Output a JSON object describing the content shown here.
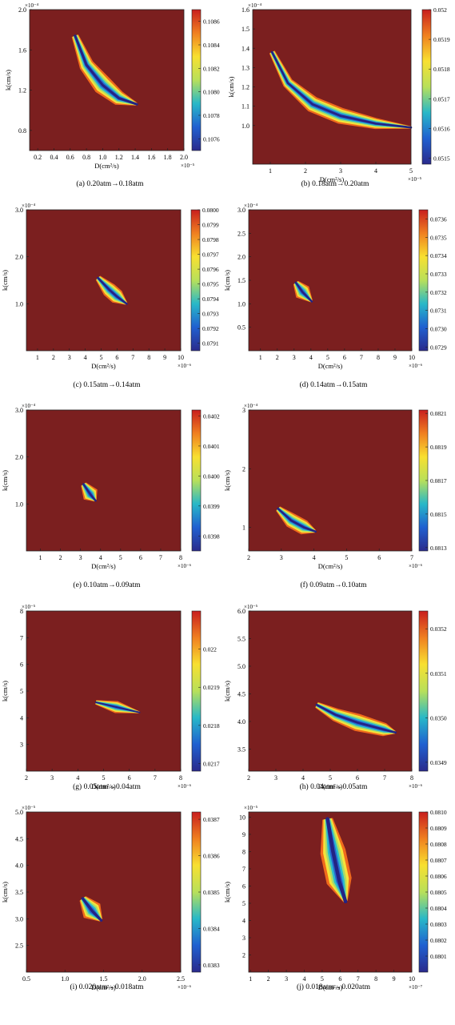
{
  "background": "#7b1f1f",
  "colormap": [
    "#2a2a8c",
    "#2060d0",
    "#28b8c8",
    "#b8e05a",
    "#f8e030",
    "#f08020",
    "#c81e1e"
  ],
  "chart_data": [
    {
      "id": "a",
      "type": "heatmap",
      "caption": "(a)  0.20atm→0.18atm",
      "xlabel": "D(cm²/s)",
      "ylabel": "k(cm/s)",
      "x_multiplier": "×10⁻⁵",
      "y_multiplier": "×10⁻⁴",
      "xlim": [
        0.1,
        2.0
      ],
      "ylim": [
        0.6,
        2.0
      ],
      "xticks": [
        0.2,
        0.4,
        0.6,
        0.8,
        1.0,
        1.2,
        1.4,
        1.6,
        1.8,
        2.0
      ],
      "xtick_labels": [
        "0.2",
        "0.4",
        "0.6",
        "0.8",
        "1.0",
        "1.2",
        "1.4",
        "1.6",
        "1.8",
        "2.0"
      ],
      "yticks": [
        0.8,
        1.2,
        1.6,
        2.0
      ],
      "ytick_labels": [
        "0.8",
        "1.2",
        "1.6",
        "2.0"
      ],
      "colorbar": {
        "lim": [
          0.1075,
          0.1087
        ],
        "ticks": [
          0.1076,
          0.1078,
          0.108,
          0.1082,
          0.1084,
          0.1086
        ],
        "labels": [
          "0.1076",
          "0.1078",
          "0.1080",
          "0.1082",
          "0.1084",
          "0.1086"
        ]
      },
      "valley": {
        "x": [
          0.66,
          0.8,
          1.0,
          1.2,
          1.42
        ],
        "y": [
          1.74,
          1.45,
          1.25,
          1.12,
          1.06
        ],
        "width": 0.14
      }
    },
    {
      "id": "b",
      "type": "heatmap",
      "caption": "(b) 0.18atm→0.20atm",
      "xlabel": "D(cm²/s)",
      "ylabel": "k(cm/s)",
      "x_multiplier": "×10⁻⁵",
      "y_multiplier": "×10⁻⁴",
      "xlim": [
        0.5,
        5.0
      ],
      "ylim": [
        0.8,
        1.6
      ],
      "xticks": [
        1,
        2,
        3,
        4,
        5
      ],
      "xtick_labels": [
        "1",
        "2",
        "3",
        "4",
        "5"
      ],
      "yticks": [
        1.0,
        1.1,
        1.2,
        1.3,
        1.4,
        1.5,
        1.6
      ],
      "ytick_labels": [
        "1.0",
        "1.1",
        "1.2",
        "1.3",
        "1.4",
        "1.5",
        "1.6"
      ],
      "colorbar": {
        "lim": [
          0.05148,
          0.052
        ],
        "ticks": [
          0.0515,
          0.0516,
          0.0517,
          0.0518,
          0.0519,
          0.052
        ],
        "labels": [
          "0.0515",
          "0.0516",
          "0.0517",
          "0.0518",
          "0.0519",
          "0.052"
        ]
      },
      "valley": {
        "x": [
          1.05,
          1.5,
          2.2,
          3.0,
          4.0,
          5.0
        ],
        "y": [
          1.38,
          1.22,
          1.11,
          1.05,
          1.01,
          0.99
        ],
        "width": 0.11
      }
    },
    {
      "id": "c",
      "type": "heatmap",
      "caption": "(c) 0.15atm→0.14atm",
      "xlabel": "D(cm²/s)",
      "ylabel": "k(cm/s)",
      "x_multiplier": "×10⁻⁶",
      "y_multiplier": "×10⁻⁴",
      "xlim": [
        0.3,
        10.0
      ],
      "ylim": [
        0.0,
        3.0
      ],
      "xticks": [
        1,
        2,
        3,
        4,
        5,
        6,
        7,
        8,
        9,
        10
      ],
      "xtick_labels": [
        "1",
        "2",
        "3",
        "4",
        "5",
        "6",
        "7",
        "8",
        "9",
        "10"
      ],
      "yticks": [
        1.0,
        2.0,
        3.0
      ],
      "ytick_labels": [
        "1.0",
        "2.0",
        "3.0"
      ],
      "colorbar": {
        "lim": [
          0.07905,
          0.08
        ],
        "ticks": [
          0.0791,
          0.0792,
          0.0793,
          0.0794,
          0.0795,
          0.0796,
          0.0797,
          0.0798,
          0.0799,
          0.08
        ],
        "labels": [
          "0.0791",
          "0.0792",
          "0.0793",
          "0.0794",
          "0.0795",
          "0.0796",
          "0.0797",
          "0.0798",
          "0.0799",
          "0.0800"
        ]
      },
      "valley": {
        "x": [
          4.8,
          5.5,
          6.0,
          6.6
        ],
        "y": [
          1.55,
          1.3,
          1.15,
          1.0
        ],
        "width": 0.12
      }
    },
    {
      "id": "d",
      "type": "heatmap",
      "caption": "(d) 0.14atm→0.15atm",
      "xlabel": "D(cm²/s)",
      "ylabel": "k(cm/s)",
      "x_multiplier": "×10⁻⁶",
      "y_multiplier": "×10⁻⁴",
      "xlim": [
        0.3,
        10.0
      ],
      "ylim": [
        0.0,
        3.0
      ],
      "xticks": [
        1,
        2,
        3,
        4,
        5,
        6,
        7,
        8,
        9,
        10
      ],
      "xtick_labels": [
        "1",
        "2",
        "3",
        "4",
        "5",
        "6",
        "7",
        "8",
        "9",
        "10"
      ],
      "yticks": [
        0.5,
        1.0,
        1.5,
        2.0,
        2.5,
        3.0
      ],
      "ytick_labels": [
        "0.5",
        "1.0",
        "1.5",
        "2.0",
        "2.5",
        "3.0"
      ],
      "colorbar": {
        "lim": [
          0.07288,
          0.07365
        ],
        "ticks": [
          0.0729,
          0.073,
          0.0731,
          0.0732,
          0.0733,
          0.0734,
          0.0735,
          0.0736
        ],
        "labels": [
          "0.0729",
          "0.0730",
          "0.0731",
          "0.0732",
          "0.0733",
          "0.0734",
          "0.0735",
          "0.0736"
        ]
      },
      "valley": {
        "x": [
          3.1,
          3.5,
          4.05
        ],
        "y": [
          1.45,
          1.25,
          1.05
        ],
        "width": 0.12
      }
    },
    {
      "id": "e",
      "type": "heatmap",
      "caption": "(e) 0.10atm→0.09atm",
      "xlabel": "D(cm²/s)",
      "ylabel": "k(cm/s)",
      "x_multiplier": "×10⁻⁶",
      "y_multiplier": "×10⁻⁴",
      "xlim": [
        0.3,
        8.0
      ],
      "ylim": [
        0.0,
        3.0
      ],
      "xticks": [
        1,
        2,
        3,
        4,
        5,
        6,
        7,
        8
      ],
      "xtick_labels": [
        "1",
        "2",
        "3",
        "4",
        "5",
        "6",
        "7",
        "8"
      ],
      "yticks": [
        1.0,
        2.0,
        3.0
      ],
      "ytick_labels": [
        "1.0",
        "2.0",
        "3.0"
      ],
      "colorbar": {
        "lim": [
          0.03975,
          0.04022
        ],
        "ticks": [
          0.0398,
          0.0399,
          0.04,
          0.0401,
          0.0402
        ],
        "labels": [
          "0.0398",
          "0.0399",
          "0.0400",
          "0.0401",
          "0.0402"
        ]
      },
      "valley": {
        "x": [
          3.15,
          3.5,
          3.75
        ],
        "y": [
          1.42,
          1.2,
          1.07
        ],
        "width": 0.12
      }
    },
    {
      "id": "f",
      "type": "heatmap",
      "caption": "(f) 0.09atm→0.10atm",
      "xlabel": "D(cm²/s)",
      "ylabel": "k(cm/s)",
      "x_multiplier": "×10⁻⁶",
      "y_multiplier": "×10⁻⁴",
      "xlim": [
        2.0,
        7.0
      ],
      "ylim": [
        0.6,
        3.0
      ],
      "xticks": [
        2,
        3,
        4,
        5,
        6,
        7
      ],
      "xtick_labels": [
        "2",
        "3",
        "4",
        "5",
        "6",
        "7"
      ],
      "yticks": [
        1,
        2,
        3
      ],
      "ytick_labels": [
        "1",
        "2",
        "3"
      ],
      "colorbar": {
        "lim": [
          0.08128,
          0.08212
        ],
        "ticks": [
          0.0813,
          0.0815,
          0.0817,
          0.0819,
          0.0821
        ],
        "labels": [
          "0.0813",
          "0.0815",
          "0.0817",
          "0.0819",
          "0.0821"
        ]
      },
      "valley": {
        "x": [
          2.9,
          3.3,
          3.7,
          4.05
        ],
        "y": [
          1.32,
          1.12,
          1.0,
          0.93
        ],
        "width": 0.12
      }
    },
    {
      "id": "g",
      "type": "heatmap",
      "caption": "(g) 0.05atm→0.04atm",
      "xlabel": "D(cm²/s)",
      "ylabel": "k(cm/s)",
      "x_multiplier": "×10⁻⁶",
      "y_multiplier": "×10⁻⁵",
      "xlim": [
        2.0,
        8.0
      ],
      "ylim": [
        2.0,
        8.0
      ],
      "xticks": [
        2,
        3,
        4,
        5,
        6,
        7,
        8
      ],
      "xtick_labels": [
        "2",
        "3",
        "4",
        "5",
        "6",
        "7",
        "8"
      ],
      "yticks": [
        3,
        4,
        5,
        6,
        7,
        8
      ],
      "ytick_labels": [
        "3",
        "4",
        "5",
        "6",
        "7",
        "8"
      ],
      "colorbar": {
        "lim": [
          0.02168,
          0.0221
        ],
        "ticks": [
          0.0217,
          0.0218,
          0.0219,
          0.022
        ],
        "labels": [
          "0.0217",
          "0.0218",
          "0.0219",
          "0.022"
        ]
      },
      "valley": {
        "x": [
          4.7,
          5.5,
          6.4
        ],
        "y": [
          4.58,
          4.4,
          4.2
        ],
        "width": 0.08
      }
    },
    {
      "id": "h",
      "type": "heatmap",
      "caption": "(h) 0.04atm→0.05atm",
      "xlabel": "D(cm²/s)",
      "ylabel": "k(cm/s)",
      "x_multiplier": "×10⁻⁶",
      "y_multiplier": "×10⁻⁵",
      "xlim": [
        2.0,
        8.0
      ],
      "ylim": [
        3.1,
        6.0
      ],
      "xticks": [
        2,
        3,
        4,
        5,
        6,
        7,
        8
      ],
      "xtick_labels": [
        "2",
        "3",
        "4",
        "5",
        "6",
        "7",
        "8"
      ],
      "yticks": [
        3.5,
        4.0,
        4.5,
        5.0,
        5.5,
        6.0
      ],
      "ytick_labels": [
        "3.5",
        "4.0",
        "4.5",
        "5.0",
        "5.5",
        "6.0"
      ],
      "colorbar": {
        "lim": [
          0.03488,
          0.03524
        ],
        "ticks": [
          0.0349,
          0.035,
          0.0351,
          0.0352
        ],
        "labels": [
          "0.0349",
          "0.0350",
          "0.0351",
          "0.0352"
        ]
      },
      "valley": {
        "x": [
          4.5,
          5.2,
          6.0,
          7.0,
          7.4
        ],
        "y": [
          4.3,
          4.12,
          3.98,
          3.85,
          3.8
        ],
        "width": 0.11
      }
    },
    {
      "id": "i",
      "type": "heatmap",
      "caption": "(i) 0.020atm→0.018atm",
      "xlabel": "D(cm²/s)",
      "ylabel": "k(cm/s)",
      "x_multiplier": "×10⁻⁶",
      "y_multiplier": "×10⁻⁵",
      "xlim": [
        0.5,
        2.5
      ],
      "ylim": [
        2.0,
        5.0
      ],
      "xticks": [
        0.5,
        1.0,
        1.5,
        2.0,
        2.5
      ],
      "xtick_labels": [
        "0.5",
        "1.0",
        "1.5",
        "2.0",
        "2.5"
      ],
      "yticks": [
        2.5,
        3.0,
        3.5,
        4.0,
        4.5,
        5.0
      ],
      "ytick_labels": [
        "2.5",
        "3.0",
        "3.5",
        "4.0",
        "4.5",
        "5.0"
      ],
      "colorbar": {
        "lim": [
          0.03828,
          0.03872
        ],
        "ticks": [
          0.0383,
          0.0384,
          0.0385,
          0.0386,
          0.0387
        ],
        "labels": [
          "0.0383",
          "0.0384",
          "0.0385",
          "0.0386",
          "0.0387"
        ]
      },
      "valley": {
        "x": [
          1.23,
          1.35,
          1.47
        ],
        "y": [
          3.38,
          3.15,
          2.97
        ],
        "width": 0.14
      }
    },
    {
      "id": "j",
      "type": "heatmap",
      "caption": "(j) 0.018atm→0.020atm",
      "xlabel": "D(cm²/s)",
      "ylabel": "k(cm/s)",
      "x_multiplier": "×10⁻⁷",
      "y_multiplier": "×10⁻⁵",
      "xlim": [
        0.9,
        10.0
      ],
      "ylim": [
        1.0,
        10.3
      ],
      "xticks": [
        1,
        2,
        3,
        4,
        5,
        6,
        7,
        8,
        9,
        10
      ],
      "xtick_labels": [
        "1",
        "2",
        "3",
        "4",
        "5",
        "6",
        "7",
        "8",
        "9",
        "10"
      ],
      "yticks": [
        2,
        3,
        4,
        5,
        6,
        7,
        8,
        9,
        10
      ],
      "ytick_labels": [
        "2",
        "3",
        "4",
        "5",
        "6",
        "7",
        "8",
        "9",
        "10"
      ],
      "colorbar": {
        "lim": [
          0.08,
          0.081
        ],
        "ticks": [
          0.0801,
          0.0802,
          0.0803,
          0.0804,
          0.0805,
          0.0806,
          0.0807,
          0.0808,
          0.0809,
          0.081
        ],
        "labels": [
          "0.0801",
          "0.0802",
          "0.0803",
          "0.0804",
          "0.0805",
          "0.0806",
          "0.0807",
          "0.0808",
          "0.0809",
          "0.0810"
        ]
      },
      "valley": {
        "x": [
          5.3,
          5.6,
          5.95,
          6.3
        ],
        "y": [
          9.9,
          8.0,
          6.3,
          5.1
        ],
        "width": 0.18
      }
    }
  ]
}
